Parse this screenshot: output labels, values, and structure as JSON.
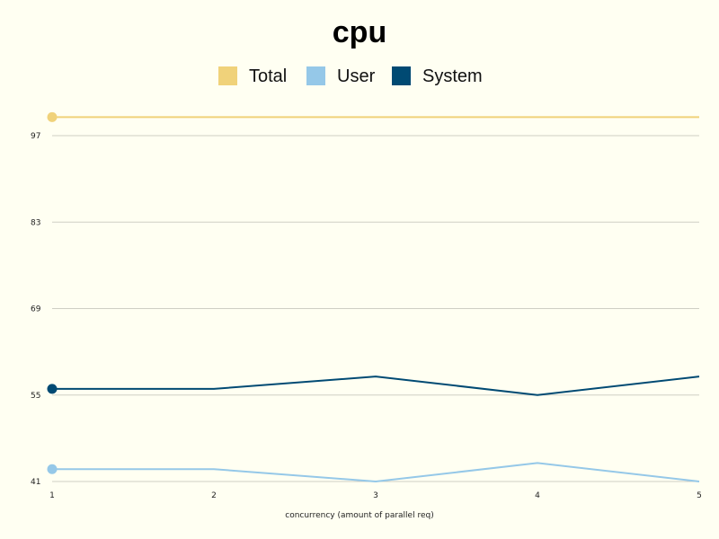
{
  "chart_data": {
    "type": "line",
    "title": "cpu",
    "xlabel": "concurrency (amount of parallel req)",
    "ylabel": "",
    "x": [
      1,
      2,
      3,
      4,
      5
    ],
    "x_ticks": [
      "1",
      "2",
      "3",
      "4",
      "5"
    ],
    "y_ticks": [
      "41",
      "55",
      "69",
      "83",
      "97"
    ],
    "ylim": [
      41,
      97
    ],
    "grid": true,
    "legend_position": "top-center",
    "series": [
      {
        "name": "Total",
        "color": "#f0d27a",
        "values": [
          100,
          100,
          100,
          100,
          100
        ]
      },
      {
        "name": "User",
        "color": "#95c8e8",
        "values": [
          43,
          43,
          41,
          44,
          41
        ]
      },
      {
        "name": "System",
        "color": "#004a73",
        "values": [
          56,
          56,
          58,
          55,
          58
        ]
      }
    ]
  }
}
